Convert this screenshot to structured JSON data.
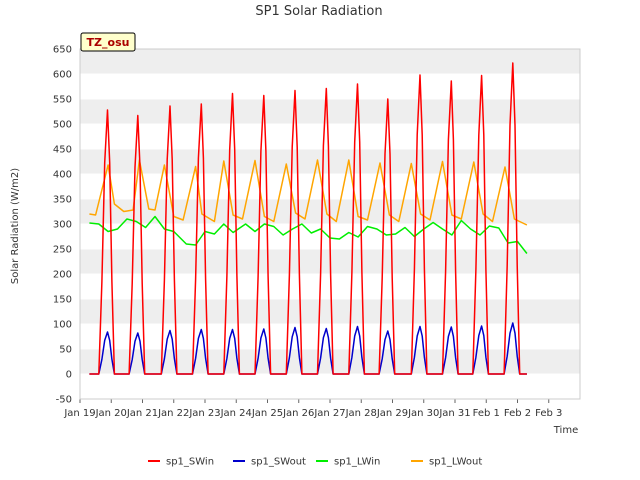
{
  "chart_data": {
    "type": "line",
    "title": "SP1 Solar Radiation",
    "xlabel": "Time",
    "ylabel": "Solar Radiation (W/m2)",
    "tag": "TZ_osu",
    "ylim": [
      -50,
      650
    ],
    "yticks": [
      -50,
      0,
      50,
      100,
      150,
      200,
      250,
      300,
      350,
      400,
      450,
      500,
      550,
      600,
      650
    ],
    "xlim": [
      0,
      16
    ],
    "xtick_labels": [
      "Jan 19",
      "Jan 20",
      "Jan 21",
      "Jan 22",
      "Jan 23",
      "Jan 24",
      "Jan 25",
      "Jan 26",
      "Jan 27",
      "Jan 28",
      "Jan 29",
      "Jan 30",
      "Jan 31",
      "Feb 1",
      "Feb 2",
      "Feb 3"
    ],
    "grid": "horizontal bands",
    "legend_position": "bottom",
    "series": [
      {
        "name": "sp1_SWin",
        "color": "#ff0000",
        "peak_x": [
          0.88,
          1.85,
          2.88,
          3.88,
          4.88,
          5.88,
          6.88,
          7.88,
          8.88,
          9.85,
          10.88,
          11.88,
          12.85,
          13.85
        ],
        "peaks": [
          528,
          517,
          536,
          540,
          561,
          557,
          567,
          571,
          580,
          550,
          598,
          586,
          597,
          622
        ],
        "night_value": 0
      },
      {
        "name": "sp1_SWout",
        "color": "#0000cc",
        "peak_x": [
          0.88,
          1.85,
          2.88,
          3.88,
          4.88,
          5.88,
          6.88,
          7.88,
          8.88,
          9.85,
          10.88,
          11.88,
          12.85,
          13.85
        ],
        "peaks": [
          84,
          82,
          87,
          89,
          89,
          90,
          93,
          91,
          95,
          86,
          95,
          94,
          96,
          102
        ],
        "night_value": 0
      },
      {
        "name": "sp1_LWin",
        "color": "#00ee00",
        "x": [
          0.3,
          0.6,
          0.9,
          1.2,
          1.5,
          1.8,
          2.1,
          2.4,
          2.7,
          3.0,
          3.4,
          3.7,
          4.0,
          4.3,
          4.6,
          4.9,
          5.3,
          5.6,
          5.9,
          6.2,
          6.5,
          6.8,
          7.1,
          7.4,
          7.7,
          8.0,
          8.3,
          8.6,
          8.9,
          9.2,
          9.5,
          9.8,
          10.1,
          10.4,
          10.7,
          11.0,
          11.3,
          11.6,
          11.9,
          12.2,
          12.5,
          12.8,
          13.1,
          13.4,
          13.7,
          14.0,
          14.3
        ],
        "y": [
          302,
          300,
          285,
          290,
          310,
          305,
          293,
          315,
          290,
          285,
          260,
          258,
          285,
          280,
          300,
          283,
          300,
          285,
          300,
          295,
          278,
          290,
          300,
          282,
          290,
          272,
          270,
          283,
          274,
          295,
          290,
          278,
          280,
          293,
          275,
          290,
          303,
          290,
          278,
          307,
          290,
          278,
          296,
          292,
          262,
          265,
          241
        ],
        "night_value": null
      },
      {
        "name": "sp1_LWout",
        "color": "#ffa500",
        "x": [
          0.3,
          0.5,
          0.9,
          1.1,
          1.4,
          1.7,
          1.9,
          2.2,
          2.4,
          2.7,
          3.0,
          3.3,
          3.7,
          3.9,
          4.3,
          4.6,
          4.9,
          5.2,
          5.6,
          5.9,
          6.2,
          6.6,
          6.9,
          7.2,
          7.6,
          7.9,
          8.2,
          8.6,
          8.9,
          9.2,
          9.6,
          9.9,
          10.2,
          10.6,
          10.9,
          11.2,
          11.6,
          11.9,
          12.2,
          12.6,
          12.9,
          13.2,
          13.6,
          13.9,
          14.3
        ],
        "y": [
          320,
          318,
          418,
          340,
          325,
          328,
          428,
          330,
          328,
          418,
          315,
          308,
          415,
          320,
          305,
          426,
          318,
          310,
          427,
          315,
          305,
          420,
          322,
          310,
          428,
          320,
          305,
          428,
          315,
          308,
          422,
          318,
          305,
          421,
          320,
          308,
          425,
          318,
          310,
          424,
          320,
          305,
          414,
          310,
          298
        ],
        "night_value": null
      }
    ]
  }
}
